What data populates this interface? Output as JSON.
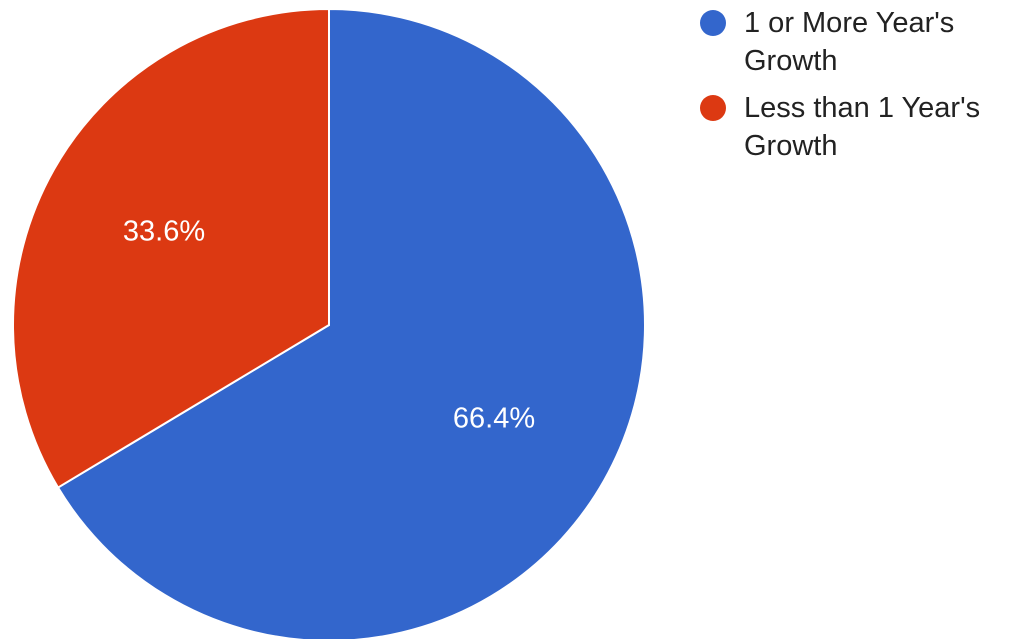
{
  "chart_data": {
    "type": "pie",
    "slices": [
      {
        "label": "1 or More Year's Growth",
        "value": 66.4,
        "display": "66.4%",
        "color": "#3366cc"
      },
      {
        "label": "Less than 1 Year's Growth",
        "value": 33.6,
        "display": "33.6%",
        "color": "#dc3912"
      }
    ],
    "legend_position": "right",
    "start_angle_deg": 0,
    "direction": "clockwise"
  }
}
